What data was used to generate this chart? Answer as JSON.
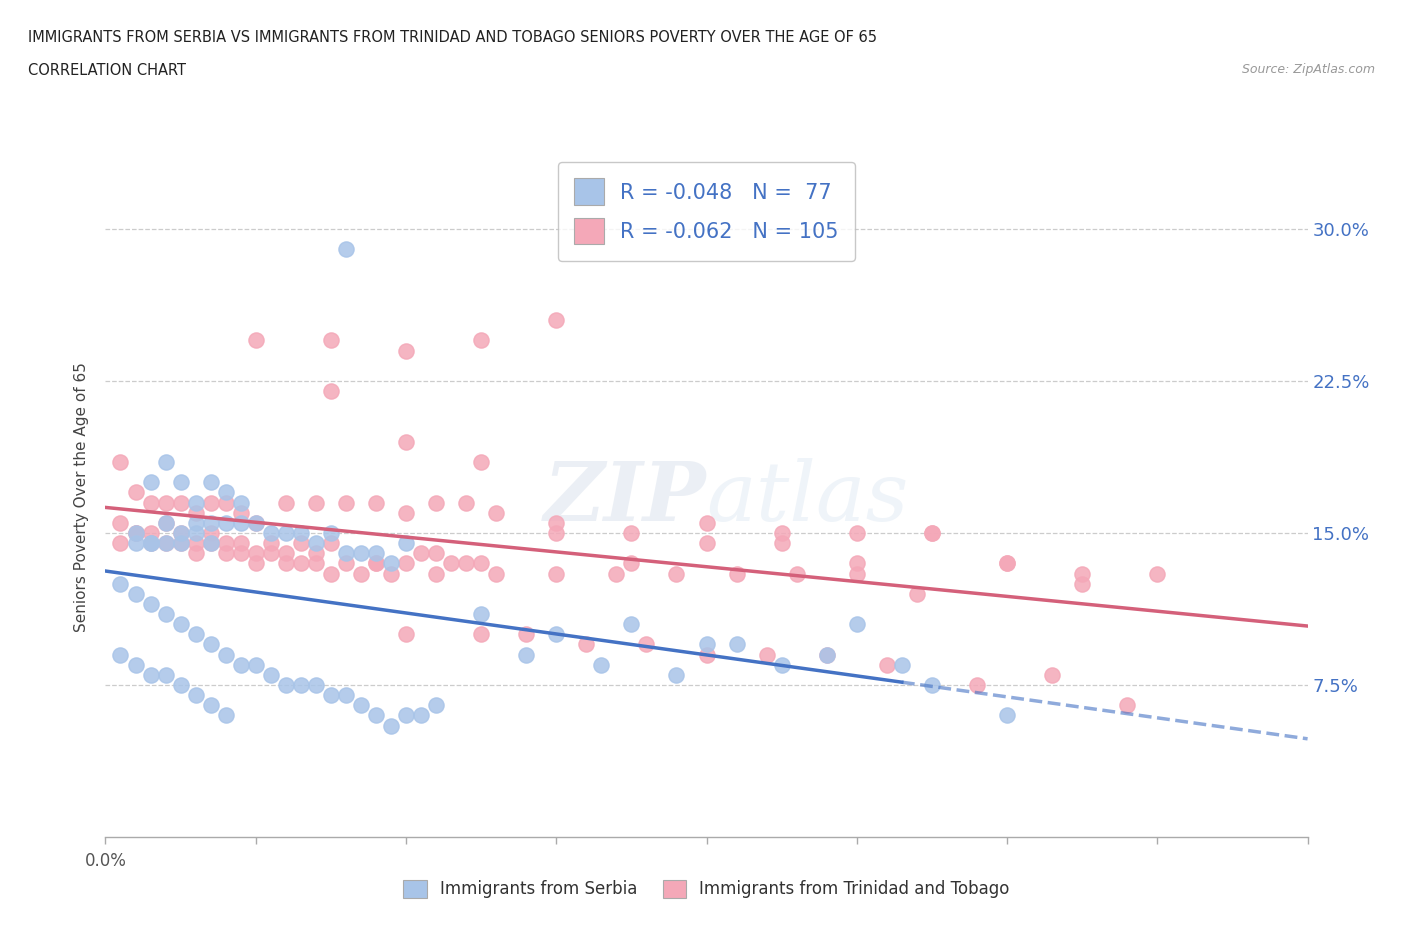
{
  "title_line1": "IMMIGRANTS FROM SERBIA VS IMMIGRANTS FROM TRINIDAD AND TOBAGO SENIORS POVERTY OVER THE AGE OF 65",
  "title_line2": "CORRELATION CHART",
  "source_text": "Source: ZipAtlas.com",
  "ylabel": "Seniors Poverty Over the Age of 65",
  "yaxis_ticks": [
    "7.5%",
    "15.0%",
    "22.5%",
    "30.0%"
  ],
  "yaxis_tick_values": [
    0.075,
    0.15,
    0.225,
    0.3
  ],
  "xlim": [
    0.0,
    0.08
  ],
  "ylim": [
    0.0,
    0.335
  ],
  "serbia_R": -0.048,
  "serbia_N": 77,
  "tt_R": -0.062,
  "tt_N": 105,
  "serbia_color": "#a8c4e8",
  "tt_color": "#f4a8b8",
  "serbia_line_color": "#4472c4",
  "tt_line_color": "#d4607a",
  "watermark_color": "#d0d8e8",
  "legend_label_serbia": "Immigrants from Serbia",
  "legend_label_tt": "Immigrants from Trinidad and Tobago",
  "serbia_scatter_x": [
    0.016,
    0.004,
    0.005,
    0.007,
    0.006,
    0.003,
    0.008,
    0.009,
    0.002,
    0.005,
    0.003,
    0.004,
    0.006,
    0.007,
    0.002,
    0.003,
    0.004,
    0.005,
    0.006,
    0.007,
    0.008,
    0.009,
    0.01,
    0.011,
    0.012,
    0.013,
    0.014,
    0.015,
    0.016,
    0.017,
    0.018,
    0.019,
    0.02,
    0.001,
    0.002,
    0.003,
    0.004,
    0.005,
    0.006,
    0.007,
    0.008,
    0.009,
    0.01,
    0.011,
    0.012,
    0.013,
    0.014,
    0.015,
    0.016,
    0.017,
    0.018,
    0.019,
    0.02,
    0.021,
    0.022,
    0.001,
    0.002,
    0.003,
    0.004,
    0.005,
    0.006,
    0.007,
    0.008,
    0.025,
    0.03,
    0.035,
    0.04,
    0.045,
    0.05,
    0.055,
    0.06,
    0.028,
    0.033,
    0.038,
    0.042,
    0.048,
    0.053
  ],
  "serbia_scatter_y": [
    0.29,
    0.185,
    0.175,
    0.175,
    0.165,
    0.175,
    0.17,
    0.165,
    0.145,
    0.145,
    0.145,
    0.155,
    0.155,
    0.155,
    0.15,
    0.145,
    0.145,
    0.15,
    0.15,
    0.145,
    0.155,
    0.155,
    0.155,
    0.15,
    0.15,
    0.15,
    0.145,
    0.15,
    0.14,
    0.14,
    0.14,
    0.135,
    0.145,
    0.125,
    0.12,
    0.115,
    0.11,
    0.105,
    0.1,
    0.095,
    0.09,
    0.085,
    0.085,
    0.08,
    0.075,
    0.075,
    0.075,
    0.07,
    0.07,
    0.065,
    0.06,
    0.055,
    0.06,
    0.06,
    0.065,
    0.09,
    0.085,
    0.08,
    0.08,
    0.075,
    0.07,
    0.065,
    0.06,
    0.11,
    0.1,
    0.105,
    0.095,
    0.085,
    0.105,
    0.075,
    0.06,
    0.09,
    0.085,
    0.08,
    0.095,
    0.09,
    0.085
  ],
  "tt_scatter_x": [
    0.001,
    0.002,
    0.003,
    0.004,
    0.005,
    0.006,
    0.007,
    0.008,
    0.009,
    0.01,
    0.001,
    0.002,
    0.003,
    0.004,
    0.005,
    0.006,
    0.007,
    0.008,
    0.009,
    0.01,
    0.011,
    0.012,
    0.013,
    0.014,
    0.015,
    0.001,
    0.002,
    0.003,
    0.004,
    0.005,
    0.006,
    0.007,
    0.008,
    0.009,
    0.01,
    0.011,
    0.012,
    0.013,
    0.014,
    0.015,
    0.016,
    0.017,
    0.018,
    0.019,
    0.02,
    0.021,
    0.022,
    0.023,
    0.024,
    0.025,
    0.012,
    0.014,
    0.016,
    0.018,
    0.02,
    0.022,
    0.024,
    0.026,
    0.02,
    0.025,
    0.03,
    0.035,
    0.04,
    0.045,
    0.05,
    0.055,
    0.06,
    0.03,
    0.035,
    0.04,
    0.045,
    0.05,
    0.055,
    0.065,
    0.018,
    0.022,
    0.026,
    0.03,
    0.034,
    0.038,
    0.042,
    0.046,
    0.05,
    0.054,
    0.06,
    0.065,
    0.07,
    0.02,
    0.025,
    0.028,
    0.032,
    0.036,
    0.04,
    0.044,
    0.048,
    0.052,
    0.058,
    0.063,
    0.068,
    0.015,
    0.01,
    0.015,
    0.02,
    0.025,
    0.03
  ],
  "tt_scatter_y": [
    0.185,
    0.17,
    0.165,
    0.165,
    0.165,
    0.16,
    0.165,
    0.165,
    0.16,
    0.155,
    0.145,
    0.15,
    0.145,
    0.155,
    0.15,
    0.145,
    0.15,
    0.145,
    0.145,
    0.14,
    0.145,
    0.14,
    0.145,
    0.14,
    0.145,
    0.155,
    0.15,
    0.15,
    0.145,
    0.145,
    0.14,
    0.145,
    0.14,
    0.14,
    0.135,
    0.14,
    0.135,
    0.135,
    0.135,
    0.13,
    0.135,
    0.13,
    0.135,
    0.13,
    0.135,
    0.14,
    0.14,
    0.135,
    0.135,
    0.135,
    0.165,
    0.165,
    0.165,
    0.165,
    0.16,
    0.165,
    0.165,
    0.16,
    0.195,
    0.185,
    0.155,
    0.15,
    0.155,
    0.145,
    0.15,
    0.15,
    0.135,
    0.15,
    0.135,
    0.145,
    0.15,
    0.135,
    0.15,
    0.125,
    0.135,
    0.13,
    0.13,
    0.13,
    0.13,
    0.13,
    0.13,
    0.13,
    0.13,
    0.12,
    0.135,
    0.13,
    0.13,
    0.1,
    0.1,
    0.1,
    0.095,
    0.095,
    0.09,
    0.09,
    0.09,
    0.085,
    0.075,
    0.08,
    0.065,
    0.22,
    0.245,
    0.245,
    0.24,
    0.245,
    0.255
  ]
}
